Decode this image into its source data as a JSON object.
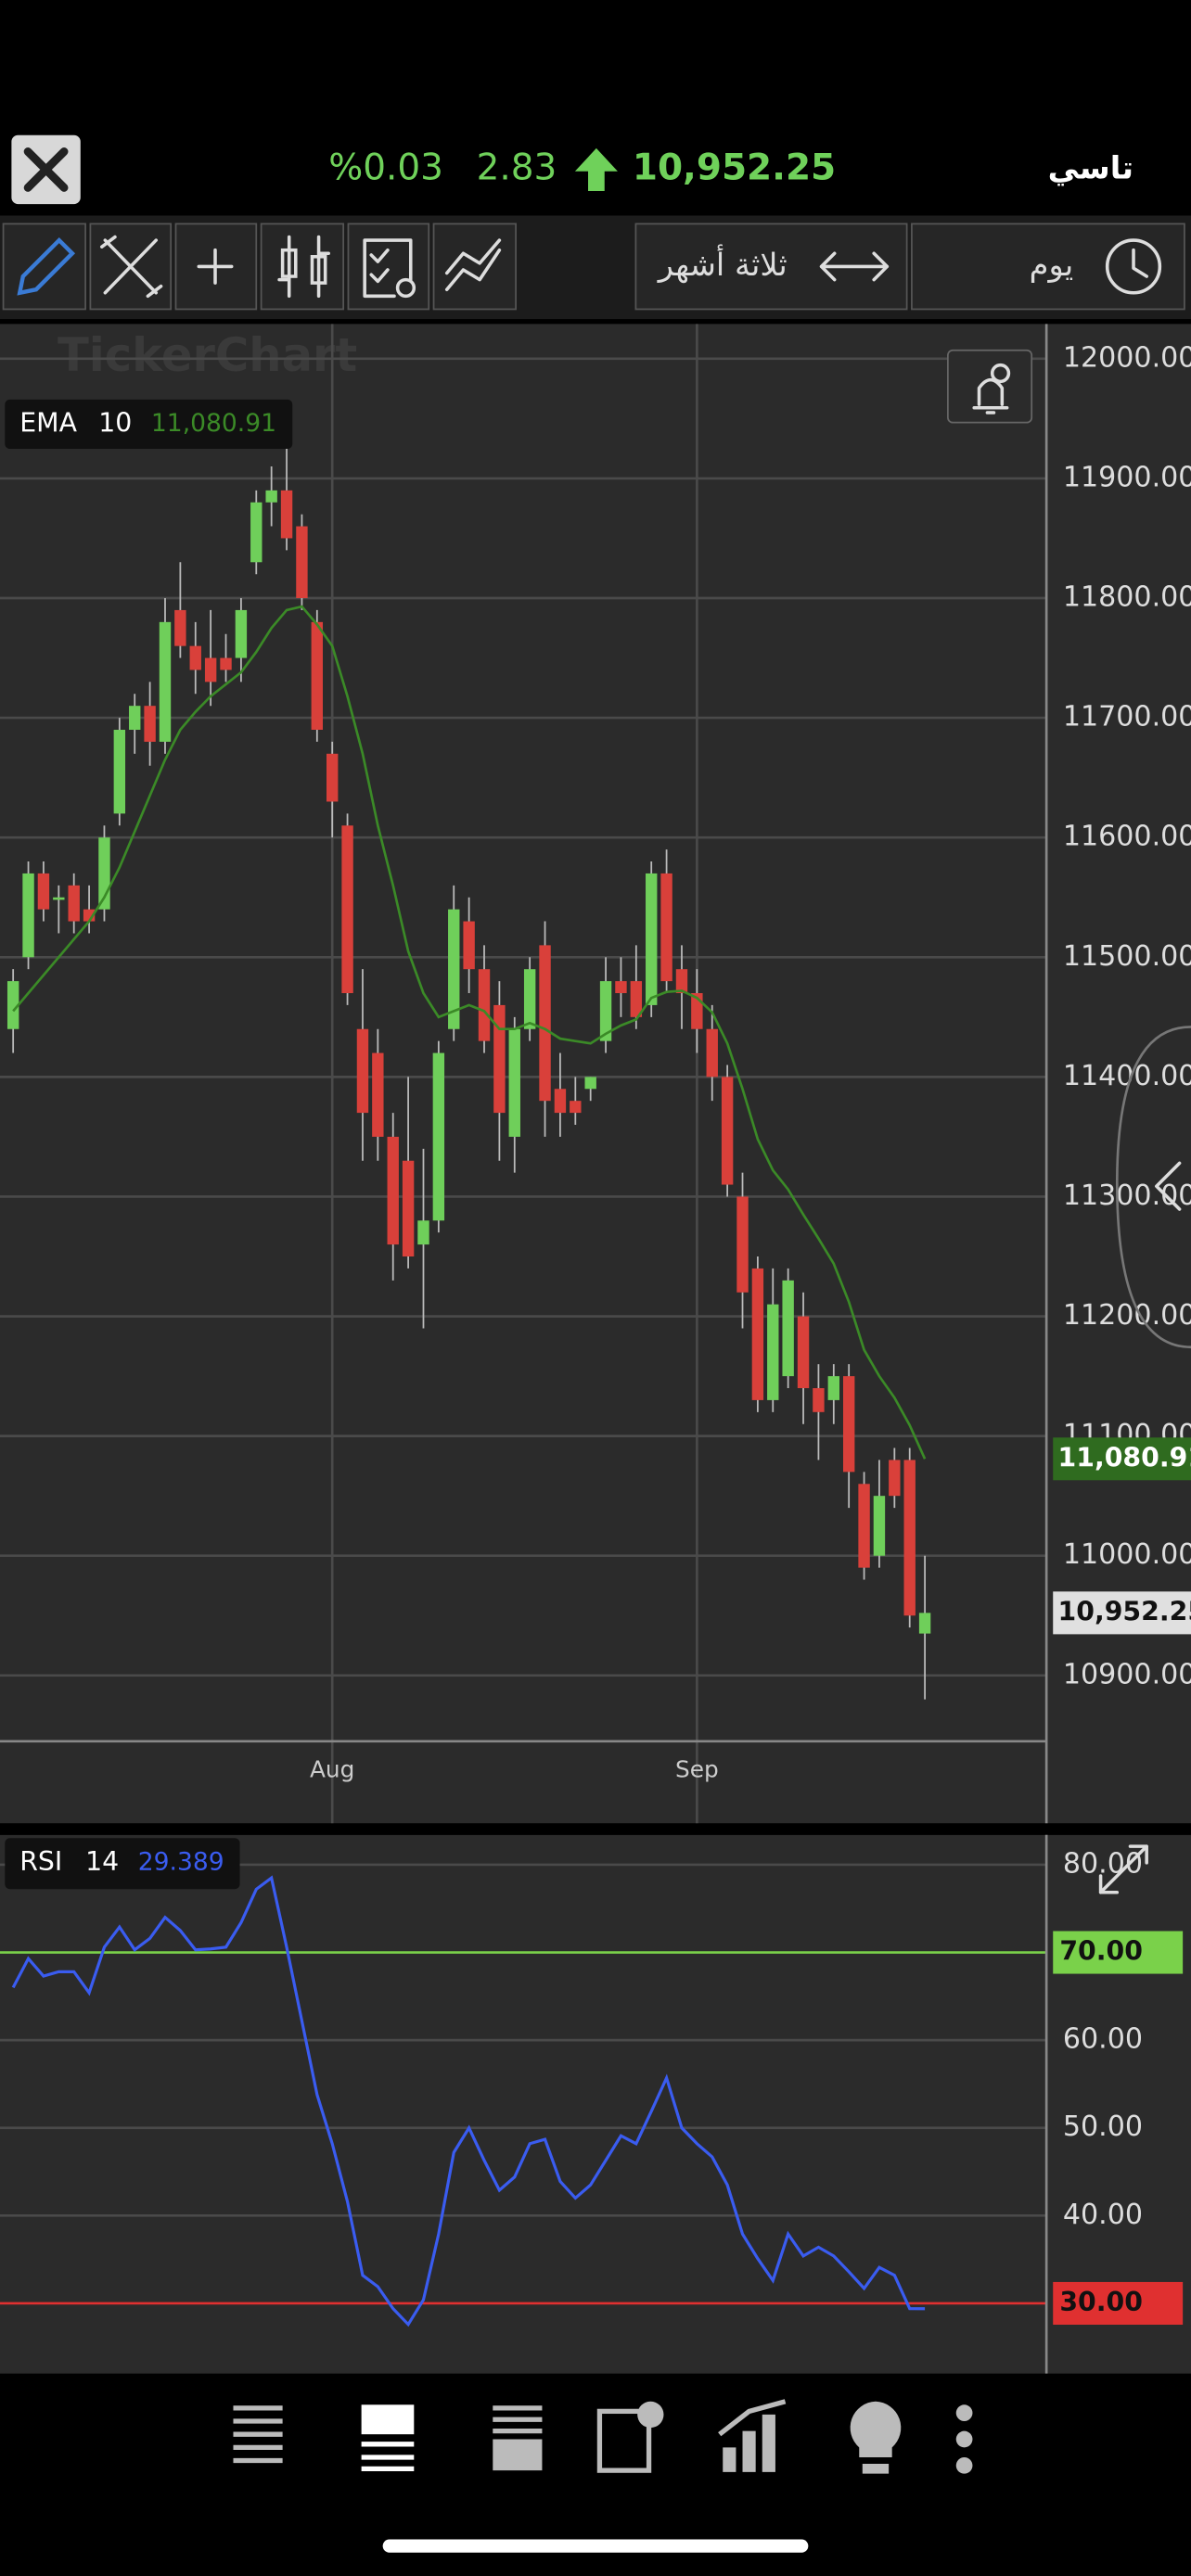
{
  "header": {
    "market": "تاسي",
    "price": "10,952.25",
    "change": "2.83",
    "change_percent": "%0.03"
  },
  "toolbar": {
    "range": "ثلاثة أشهر",
    "interval": "يوم"
  },
  "watermark": "TickerChart",
  "chart_data": [
    {
      "type": "candlestick",
      "categories": [
        null,
        null,
        null,
        null,
        null,
        null,
        null,
        null,
        null,
        null,
        null,
        null,
        null,
        null,
        null,
        null,
        null,
        null,
        null,
        null,
        null,
        "Aug",
        null,
        null,
        null,
        null,
        null,
        null,
        null,
        null,
        null,
        null,
        null,
        null,
        null,
        null,
        null,
        null,
        null,
        null,
        null,
        null,
        null,
        null,
        null,
        "Sep",
        null,
        null,
        null,
        null,
        null,
        null,
        null,
        null,
        null,
        null,
        null,
        null,
        null,
        null,
        null
      ],
      "open": [
        11440,
        11500,
        11570,
        11550,
        11560,
        11540,
        11540,
        11620,
        11690,
        11710,
        11680,
        11790,
        11760,
        11750,
        11750,
        11750,
        11830,
        11880,
        11890,
        11860,
        11780,
        11670,
        11610,
        11440,
        11420,
        11350,
        11330,
        11260,
        11280,
        11440,
        11530,
        11490,
        11460,
        11350,
        11440,
        11510,
        11390,
        11380,
        11390,
        11430,
        11480,
        11480,
        11460,
        11570,
        11490,
        11470,
        11440,
        11400,
        11300,
        11240,
        11130,
        11150,
        11200,
        11140,
        11130,
        11150,
        11060,
        11000,
        11080,
        11080,
        10935
      ],
      "high": [
        11490,
        11580,
        11580,
        11560,
        11570,
        11560,
        11610,
        11700,
        11720,
        11730,
        11800,
        11830,
        11780,
        11790,
        11770,
        11800,
        11890,
        11910,
        11930,
        11870,
        11790,
        11680,
        11620,
        11490,
        11440,
        11370,
        11400,
        11340,
        11430,
        11560,
        11550,
        11510,
        11480,
        11450,
        11500,
        11530,
        11420,
        11400,
        11400,
        11500,
        11500,
        11510,
        11580,
        11590,
        11510,
        11490,
        11460,
        11410,
        11320,
        11250,
        11240,
        11240,
        11220,
        11160,
        11160,
        11160,
        11070,
        11080,
        11090,
        11090,
        11000
      ],
      "low": [
        11420,
        11490,
        11530,
        11520,
        11520,
        11520,
        11530,
        11610,
        11670,
        11660,
        11670,
        11750,
        11720,
        11710,
        11730,
        11730,
        11820,
        11860,
        11840,
        11790,
        11680,
        11600,
        11460,
        11330,
        11330,
        11230,
        11240,
        11190,
        11270,
        11430,
        11470,
        11420,
        11330,
        11320,
        11430,
        11350,
        11350,
        11360,
        11380,
        11420,
        11450,
        11440,
        11450,
        11470,
        11440,
        11420,
        11380,
        11300,
        11190,
        11120,
        11120,
        11140,
        11110,
        11080,
        11110,
        11040,
        10980,
        10990,
        11040,
        10940,
        10880
      ],
      "close": [
        11480,
        11570,
        11540,
        11550,
        11530,
        11530,
        11600,
        11690,
        11710,
        11680,
        11780,
        11760,
        11740,
        11730,
        11740,
        11790,
        11880,
        11890,
        11850,
        11800,
        11690,
        11630,
        11470,
        11370,
        11350,
        11260,
        11250,
        11280,
        11420,
        11540,
        11490,
        11430,
        11370,
        11440,
        11490,
        11380,
        11370,
        11370,
        11400,
        11480,
        11470,
        11450,
        11570,
        11480,
        11470,
        11440,
        11400,
        11310,
        11220,
        11130,
        11210,
        11230,
        11140,
        11120,
        11150,
        11070,
        10990,
        11050,
        11050,
        10950,
        10952.25
      ],
      "up_color": "#6fcf5a",
      "down_color": "#d9403a",
      "last_price_label": "10,952.25",
      "ylim": [
        10845,
        12029
      ],
      "yticks": [
        {
          "value": 10900,
          "label": "10900.00"
        },
        {
          "value": 11000,
          "label": "11000.00"
        },
        {
          "value": 11100,
          "label": "11100.00"
        },
        {
          "value": 11200,
          "label": "11200.00"
        },
        {
          "value": 11300,
          "label": "11300.00"
        },
        {
          "value": 11400,
          "label": "11400.00"
        },
        {
          "value": 11500,
          "label": "11500.00"
        },
        {
          "value": 11600,
          "label": "11600.00"
        },
        {
          "value": 11700,
          "label": "11700.00"
        },
        {
          "value": 11800,
          "label": "11800.00"
        },
        {
          "value": 11900,
          "label": "11900.00"
        },
        {
          "value": 12000,
          "label": "12000.00"
        }
      ],
      "grid": true,
      "indicator": {
        "name": "EMA",
        "period": 10,
        "color": "#3b8a27",
        "values": [
          11455,
          11470,
          11485,
          11500,
          11515,
          11530,
          11550,
          11575,
          11605,
          11635,
          11665,
          11690,
          11705,
          11718,
          11728,
          11738,
          11755,
          11775,
          11790,
          11793,
          11778,
          11760,
          11718,
          11670,
          11610,
          11560,
          11505,
          11470,
          11450,
          11455,
          11460,
          11455,
          11440,
          11440,
          11445,
          11440,
          11432,
          11430,
          11428,
          11436,
          11443,
          11448,
          11466,
          11471,
          11472,
          11466,
          11454,
          11428,
          11390,
          11348,
          11322,
          11306,
          11285,
          11265,
          11244,
          11212,
          11172,
          11150,
          11132,
          11109,
          11080.91
        ],
        "last_label": "11,080.91"
      }
    },
    {
      "type": "line",
      "series": [
        {
          "name": "RSI",
          "period": 14,
          "color": "#3a5cf0",
          "values": [
            66.0,
            69.3,
            67.3,
            67.8,
            67.8,
            65.4,
            70.6,
            72.9,
            70.3,
            71.6,
            74.0,
            72.5,
            70.3,
            70.4,
            70.6,
            73.4,
            77.2,
            78.5,
            70.6,
            62.2,
            53.8,
            48.2,
            41.6,
            33.2,
            31.9,
            29.4,
            27.6,
            30.4,
            37.9,
            47.2,
            50.0,
            46.3,
            42.9,
            44.4,
            48.2,
            48.7,
            43.9,
            42.0,
            43.5,
            46.3,
            49.1,
            48.2,
            51.9,
            55.7,
            50.0,
            48.2,
            46.7,
            43.5,
            37.9,
            35.1,
            32.6,
            37.9,
            35.4,
            36.4,
            35.4,
            33.6,
            31.7,
            34.1,
            33.2,
            29.4,
            29.389
          ],
          "last_label": "29.389"
        }
      ],
      "ylim": [
        22,
        83.4
      ],
      "yticks": [
        {
          "value": 40,
          "label": "40.00"
        },
        {
          "value": 50,
          "label": "50.00"
        },
        {
          "value": 60,
          "label": "60.00"
        },
        {
          "value": 80,
          "label": "80.00"
        }
      ],
      "levels": [
        {
          "value": 70,
          "label": "70.00",
          "color": "#7ad14a"
        },
        {
          "value": 30,
          "label": "30.00",
          "color": "#e03030"
        }
      ],
      "grid": true
    }
  ]
}
